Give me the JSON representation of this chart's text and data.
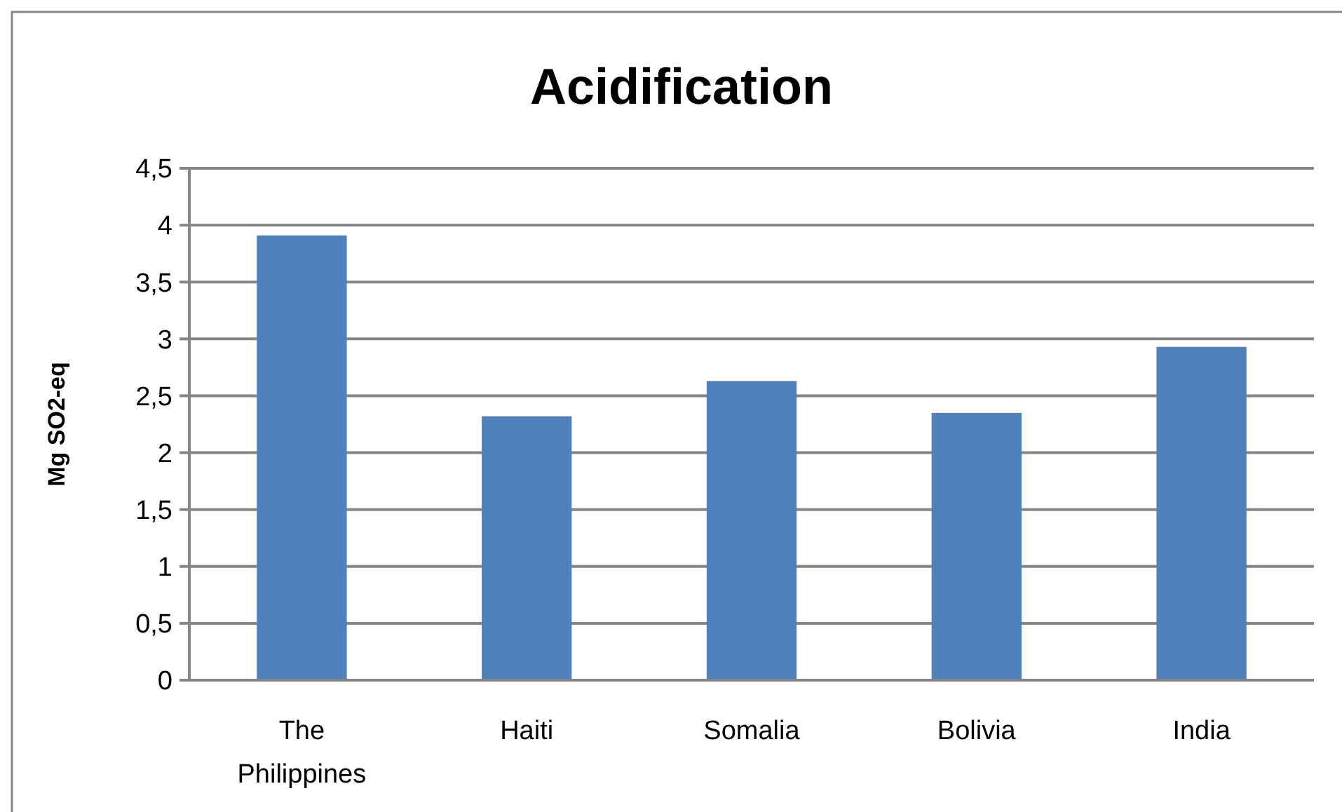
{
  "chart_data": {
    "type": "bar",
    "title": "Acidification",
    "ylabel": "Mg SO2-eq",
    "categories": [
      "The Philippines",
      "Haiti",
      "Somalia",
      "Bolivia",
      "India"
    ],
    "values": [
      3.91,
      2.32,
      2.63,
      2.35,
      2.93
    ],
    "color": "#4f81bd",
    "ylim": [
      0,
      4.5
    ],
    "yticks": [
      {
        "value": 0,
        "label": "0"
      },
      {
        "value": 0.5,
        "label": "0,5"
      },
      {
        "value": 1,
        "label": "1"
      },
      {
        "value": 1.5,
        "label": "1,5"
      },
      {
        "value": 2,
        "label": "2"
      },
      {
        "value": 2.5,
        "label": "2,5"
      },
      {
        "value": 3,
        "label": "3"
      },
      {
        "value": 3.5,
        "label": "3,5"
      },
      {
        "value": 4,
        "label": "4"
      },
      {
        "value": 4.5,
        "label": "4,5"
      }
    ],
    "grid": "y"
  }
}
